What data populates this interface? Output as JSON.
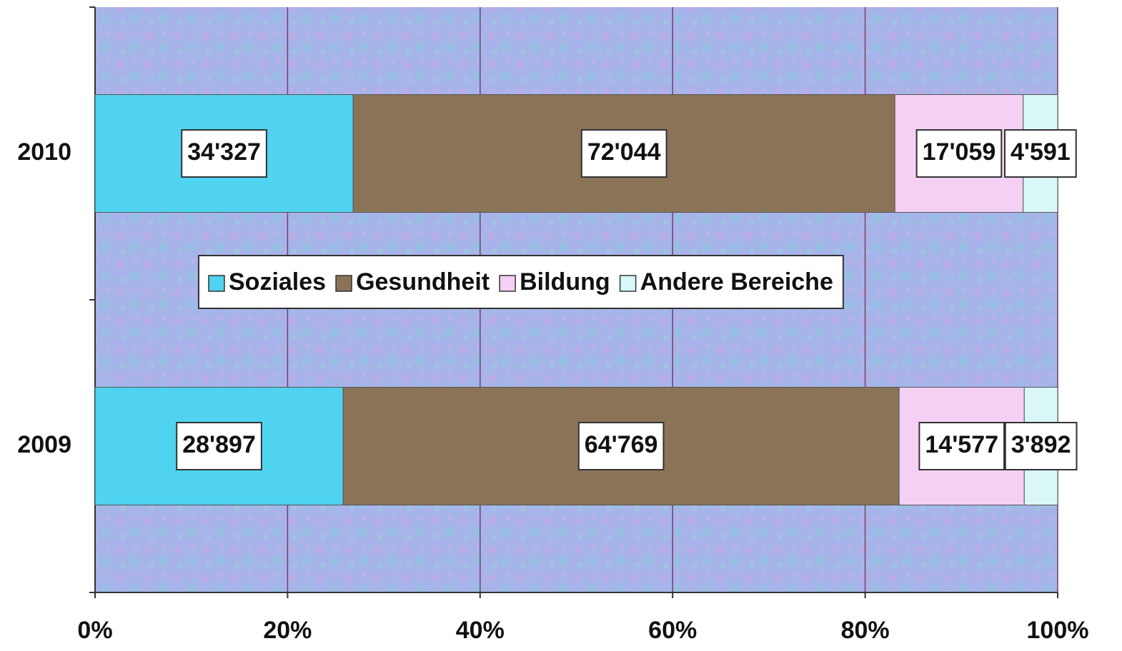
{
  "chart_data": {
    "type": "bar",
    "orientation": "horizontal",
    "stacked": "percent",
    "categories": [
      "2010",
      "2009"
    ],
    "series": [
      {
        "name": "Soziales",
        "color": "#4fd3f0",
        "values": [
          34327,
          28897
        ],
        "value_labels": [
          "34'327",
          "28'897"
        ]
      },
      {
        "name": "Gesundheit",
        "color": "#8b7358",
        "values": [
          72044,
          64769
        ],
        "value_labels": [
          "72'044",
          "64'769"
        ]
      },
      {
        "name": "Bildung",
        "color": "#f5d0f5",
        "values": [
          17059,
          14577
        ],
        "value_labels": [
          "17'059",
          "14'577"
        ]
      },
      {
        "name": "Andere Bereiche",
        "color": "#d8f8f8",
        "values": [
          4591,
          3892
        ],
        "value_labels": [
          "4'591",
          "3'892"
        ]
      }
    ],
    "xlim": [
      0,
      100
    ],
    "xticks": [
      {
        "value": 0,
        "label": "0%"
      },
      {
        "value": 20,
        "label": "20%"
      },
      {
        "value": 40,
        "label": "40%"
      },
      {
        "value": 60,
        "label": "60%"
      },
      {
        "value": 80,
        "label": "80%"
      },
      {
        "value": 100,
        "label": "100%"
      }
    ],
    "grid": true,
    "legend": "center"
  }
}
